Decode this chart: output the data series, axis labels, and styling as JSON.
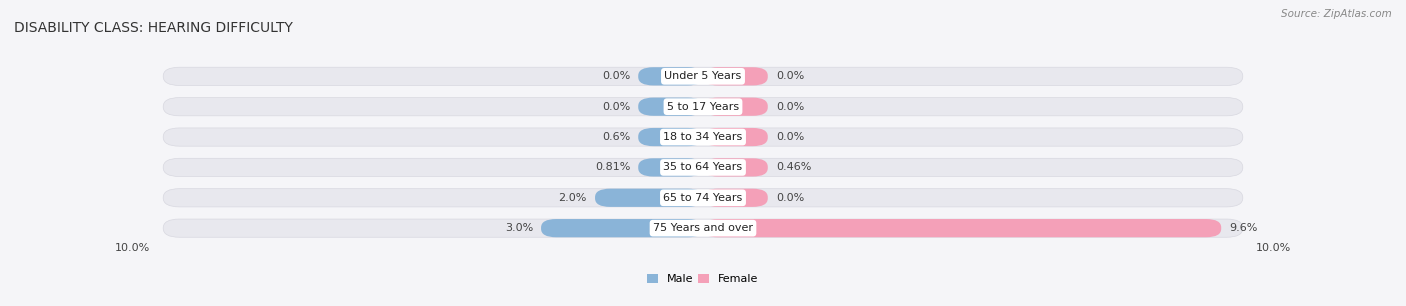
{
  "title": "DISABILITY CLASS: HEARING DIFFICULTY",
  "source": "Source: ZipAtlas.com",
  "categories": [
    "Under 5 Years",
    "5 to 17 Years",
    "18 to 34 Years",
    "35 to 64 Years",
    "65 to 74 Years",
    "75 Years and over"
  ],
  "male_values": [
    0.0,
    0.0,
    0.6,
    0.81,
    2.0,
    3.0
  ],
  "female_values": [
    0.0,
    0.0,
    0.0,
    0.46,
    0.0,
    9.6
  ],
  "male_color": "#8ab4d8",
  "female_color": "#f4a0b8",
  "bar_bg_color": "#e8e8ee",
  "bar_bg_border": "#d8d8e0",
  "max_val": 10.0,
  "x_min_label": "10.0%",
  "x_max_label": "10.0%",
  "title_fontsize": 10,
  "label_fontsize": 8,
  "cat_fontsize": 8,
  "background_color": "#f5f5f8",
  "min_bar_width": 1.2
}
